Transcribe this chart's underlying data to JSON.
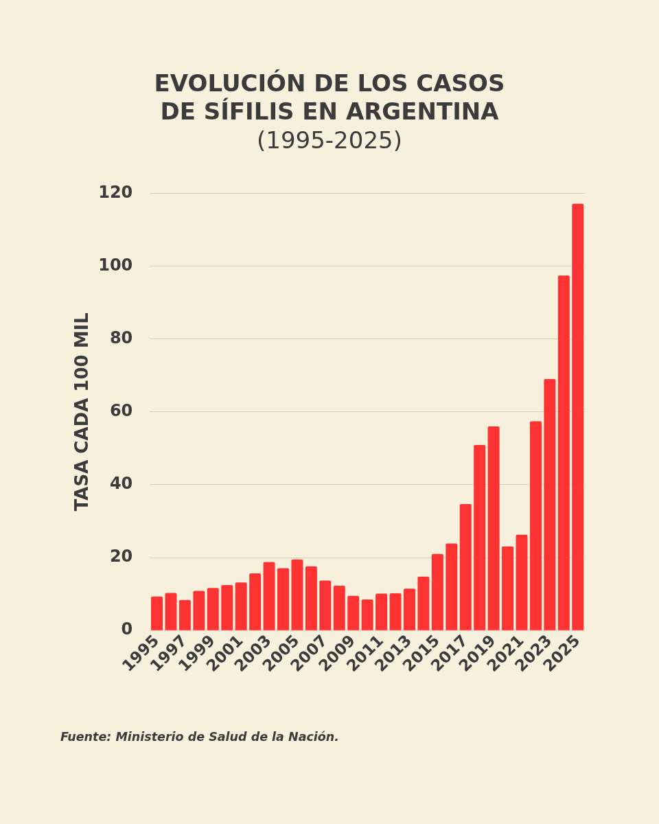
{
  "chart_data": {
    "type": "bar",
    "title": "EVOLUCIÓN DE LOS CASOS DE SÍFILIS EN ARGENTINA",
    "subtitle": "(1995-2025)",
    "ylabel": "TASA CADA 100 MIL",
    "categories": [
      "1995",
      null,
      "1997",
      null,
      "1999",
      null,
      "2001",
      null,
      "2003",
      null,
      "2005",
      null,
      "2007",
      null,
      "2009",
      null,
      "2011",
      null,
      "2013",
      null,
      "2015",
      null,
      "2017",
      null,
      "2019",
      null,
      "2021",
      null,
      "2023",
      null,
      "2025"
    ],
    "values": [
      9.3,
      10.3,
      8.4,
      10.9,
      11.7,
      12.5,
      13.2,
      15.7,
      18.8,
      17.1,
      19.5,
      17.6,
      13.7,
      12.3,
      9.5,
      8.5,
      10.1,
      10.2,
      11.5,
      14.8,
      21.0,
      23.9,
      34.7,
      50.9,
      56.0,
      23.1,
      26.3,
      57.4,
      69.0,
      97.4,
      117.1
    ],
    "color": "#fd3232",
    "ylim": [
      0,
      120
    ],
    "yticks": [
      0,
      20,
      40,
      60,
      80,
      100,
      120
    ],
    "grid": "y",
    "annotations": [
      "Fuente: Ministerio de Salud de la Nación."
    ]
  }
}
